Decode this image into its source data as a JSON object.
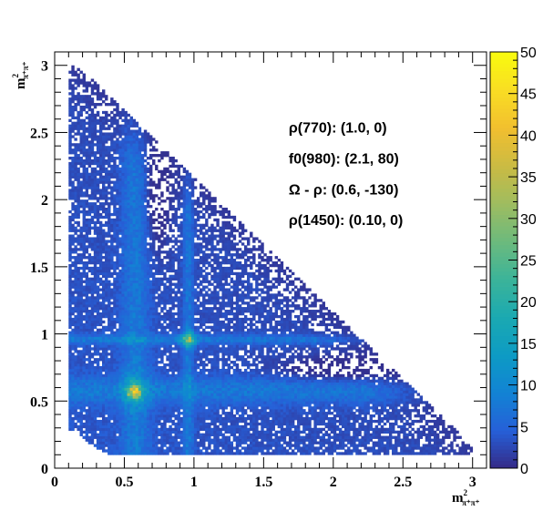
{
  "chart_data": {
    "type": "heatmap",
    "title": "",
    "xlabel": {
      "base": "m",
      "sup": "2",
      "sub": "π⁺π⁺"
    },
    "ylabel": {
      "base": "m",
      "sup": "2",
      "sub": "π⁺π⁺"
    },
    "xlim": [
      0,
      3.1
    ],
    "ylim": [
      0,
      3.1
    ],
    "x_ticks": [
      0,
      0.5,
      1,
      1.5,
      2,
      2.5,
      3
    ],
    "x_tick_labels": [
      "0",
      "0.5",
      "1",
      "1.5",
      "2",
      "2.5",
      "3"
    ],
    "y_ticks": [
      0,
      0.5,
      1,
      1.5,
      2,
      2.5,
      3
    ],
    "y_tick_labels": [
      "0",
      "0.5",
      "1",
      "1.5",
      "2",
      "2.5",
      "3"
    ],
    "grid": false,
    "colorbar": {
      "range": [
        0,
        50
      ],
      "ticks": [
        0,
        5,
        10,
        15,
        20,
        25,
        30,
        35,
        40,
        45,
        50
      ],
      "tick_labels": [
        "0",
        "5",
        "10",
        "15",
        "20",
        "25",
        "30",
        "35",
        "40",
        "45",
        "50"
      ],
      "colormap": [
        "#352a87",
        "#2660d8",
        "#1283d4",
        "#0d9bc4",
        "#1ba9b1",
        "#3cb499",
        "#6cba7d",
        "#9fbc5f",
        "#cbbb43",
        "#f2bf2f",
        "#f9dd23",
        "#f9fb0e"
      ]
    },
    "dalitz_boundary": {
      "x_min": 0.1,
      "x_max": 3.0,
      "y_min": 0.1,
      "y_max": 3.0,
      "sum_max": 3.17
    },
    "resonance_bands": [
      {
        "axis": "both",
        "center": 0.58,
        "note": "ρ(770)"
      },
      {
        "axis": "both",
        "center": 0.96,
        "note": "f0(980)"
      }
    ],
    "hot_spots": [
      {
        "x": 0.57,
        "y": 0.57,
        "level": 45
      },
      {
        "x": 0.96,
        "y": 0.96,
        "level": 40
      }
    ],
    "annotations": [
      {
        "text": "ρ(770): (1.0, 0)",
        "x": 1.68,
        "y": 2.5
      },
      {
        "text": "f0(980): (2.1, 80)",
        "x": 1.68,
        "y": 2.27
      },
      {
        "text": "Ω -  ρ: (0.6, -130)",
        "x": 1.68,
        "y": 2.04
      },
      {
        "text": "ρ(1450): (0.10, 0)",
        "x": 1.68,
        "y": 1.81
      }
    ]
  }
}
